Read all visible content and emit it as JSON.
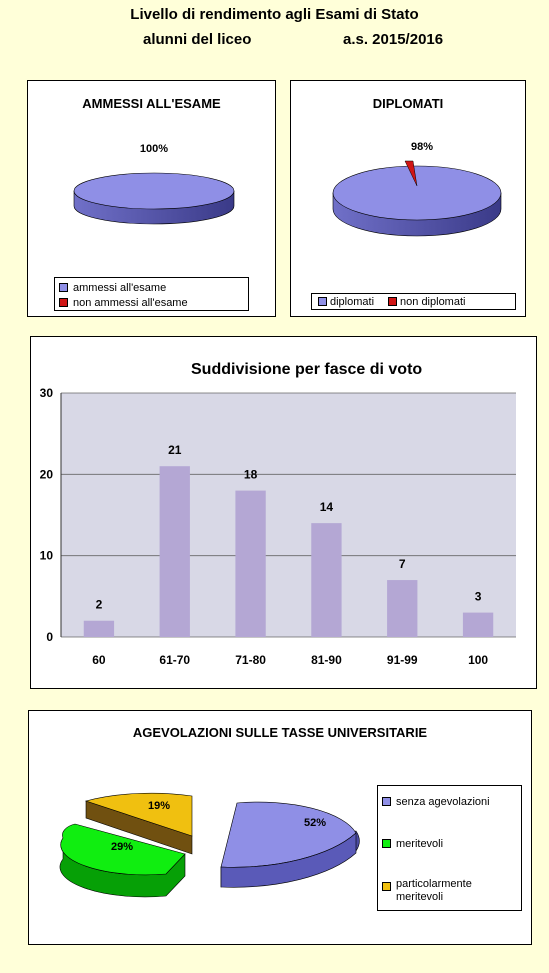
{
  "header": {
    "line1": "Livello di rendimento agli Esami di Stato",
    "line2_left": "alunni del liceo",
    "line2_right": "a.s. 2015/2016"
  },
  "colors": {
    "background": "#ffffd9",
    "purple": "#8f8fe6",
    "red": "#d01515",
    "bar": "#b4a7d4",
    "green": "#10ee10",
    "yellow": "#f0c010"
  },
  "chart_data": [
    {
      "type": "pie",
      "title": "AMMESSI ALL'ESAME",
      "labels": [
        "ammessi all'esame",
        "non ammessi all'esame"
      ],
      "values": [
        100,
        0
      ],
      "data_labels": [
        "100%"
      ],
      "legend": "bottom"
    },
    {
      "type": "pie",
      "title": "DIPLOMATI",
      "labels": [
        "diplomati",
        "non diplomati"
      ],
      "values": [
        98,
        2
      ],
      "data_labels": [
        "98%"
      ],
      "legend": "bottom"
    },
    {
      "type": "bar",
      "title": "Suddivisione per fasce di voto",
      "categories": [
        "60",
        "61-70",
        "71-80",
        "81-90",
        "91-99",
        "100"
      ],
      "values": [
        2,
        21,
        18,
        14,
        7,
        3
      ],
      "ylim": [
        0,
        30
      ],
      "yticks": [
        "0",
        "10",
        "20",
        "30"
      ],
      "grid": true
    },
    {
      "type": "pie",
      "title": "AGEVOLAZIONI  SULLE TASSE UNIVERSITARIE",
      "labels": [
        "senza agevolazioni",
        "meritevoli",
        "particolarmente meritevoli"
      ],
      "values": [
        52,
        29,
        19
      ],
      "data_labels": [
        "52%",
        "29%",
        "19%"
      ],
      "legend": "right"
    }
  ]
}
